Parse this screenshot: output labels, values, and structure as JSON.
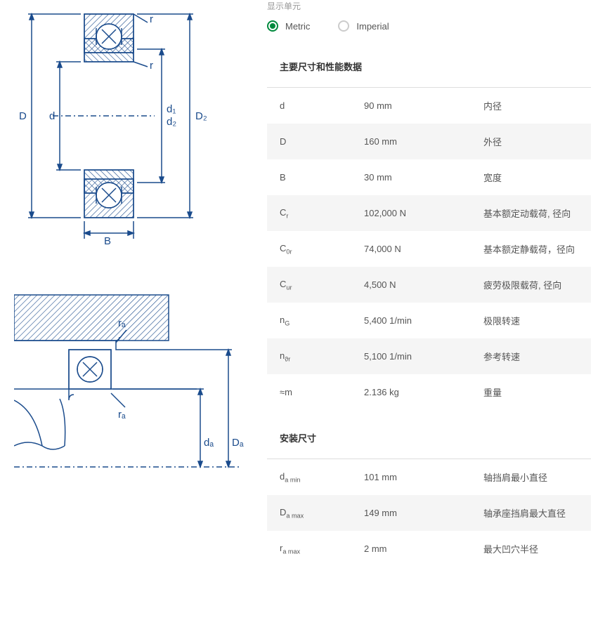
{
  "units": {
    "label": "显示单元",
    "metric": "Metric",
    "imperial": "Imperial",
    "selected": "metric"
  },
  "diagram1": {
    "labels": [
      "r",
      "r",
      "D",
      "d",
      "d₁",
      "d₂",
      "D₂",
      "B"
    ],
    "stroke": "#1a4b8c",
    "hatch": "#1a4b8c",
    "centerline_dash": "6,4,2,4"
  },
  "diagram2": {
    "labels": [
      "rₐ",
      "rₐ",
      "dₐ",
      "Dₐ"
    ],
    "stroke": "#1a4b8c"
  },
  "sections": {
    "main_title": "主要尺寸和性能数据",
    "mounting_title": "安装尺寸"
  },
  "main_specs": [
    {
      "sym": "d",
      "sub": "",
      "val": "90 mm",
      "desc": "内径"
    },
    {
      "sym": "D",
      "sub": "",
      "val": "160 mm",
      "desc": "外径"
    },
    {
      "sym": "B",
      "sub": "",
      "val": "30 mm",
      "desc": "宽度"
    },
    {
      "sym": "C",
      "sub": "r",
      "val": "102,000 N",
      "desc": "基本额定动载荷, 径向"
    },
    {
      "sym": "C",
      "sub": "0r",
      "val": "74,000 N",
      "desc": "基本额定静载荷，径向"
    },
    {
      "sym": "C",
      "sub": "ur",
      "val": "4,500 N",
      "desc": "疲劳极限载荷, 径向"
    },
    {
      "sym": "n",
      "sub": "G",
      "val": "5,400 1/min",
      "desc": "极限转速"
    },
    {
      "sym": "n",
      "sub": "ϑr",
      "val": "5,100 1/min",
      "desc": "参考转速"
    },
    {
      "sym": "≈m",
      "sub": "",
      "val": "2.136 kg",
      "desc": "重量"
    }
  ],
  "mounting_specs": [
    {
      "sym": "d",
      "sub": "a min",
      "val": "101 mm",
      "desc": "轴挡肩最小直径"
    },
    {
      "sym": "D",
      "sub": "a max",
      "val": "149 mm",
      "desc": "轴承座挡肩最大直径"
    },
    {
      "sym": "r",
      "sub": "a max",
      "val": "2 mm",
      "desc": "最大凹穴半径"
    }
  ],
  "colors": {
    "accent": "#00893d",
    "row_alt": "#f5f5f5",
    "text": "#555555",
    "muted": "#999999",
    "border": "#dddddd",
    "diagram_stroke": "#1a4b8c"
  }
}
